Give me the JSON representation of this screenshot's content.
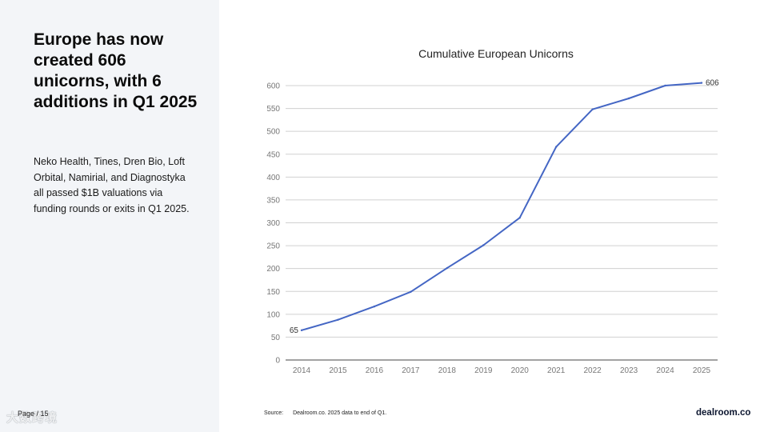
{
  "headline": "Europe has now created 606 unicorns, with 6 additions in Q1 2025",
  "body": "Neko Health, Tines, Dren Bio, Loft Orbital, Namirial, and Diagnostyka all passed $1B valuations via funding rounds or exits in Q1 2025.",
  "footer": {
    "page_label": "Page / 15",
    "watermark": "大数跨境",
    "source_label": "Source:",
    "source_text": "Dealroom.co. 2025 data to end of Q1.",
    "brand": "dealroom.co"
  },
  "colors": {
    "panel_bg": "#f3f5f8",
    "line": "#4466c4",
    "grid": "#d0d0d0"
  },
  "chart_data": {
    "type": "line",
    "title": "Cumulative European Unicorns",
    "xlabel": "",
    "ylabel": "",
    "categories": [
      "2014",
      "2015",
      "2016",
      "2017",
      "2018",
      "2019",
      "2020",
      "2021",
      "2022",
      "2023",
      "2024",
      "2025"
    ],
    "series": [
      {
        "name": "Cumulative European Unicorns",
        "values": [
          65,
          88,
          117,
          149,
          201,
          251,
          311,
          466,
          548,
          572,
          600,
          606
        ]
      }
    ],
    "ylim": [
      0,
      600
    ],
    "yticks": [
      0,
      50,
      100,
      150,
      200,
      250,
      300,
      350,
      400,
      450,
      500,
      550,
      600
    ],
    "grid": true,
    "data_labels": [
      {
        "category": "2014",
        "text": "65"
      },
      {
        "category": "2025",
        "text": "606"
      }
    ]
  }
}
